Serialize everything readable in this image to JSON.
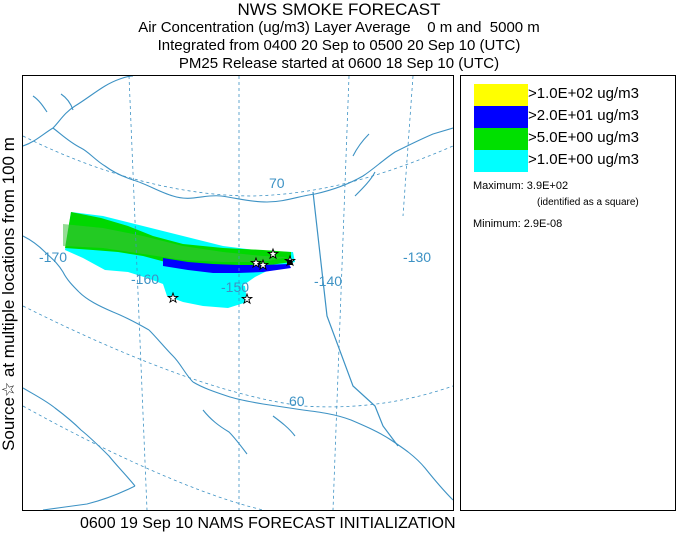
{
  "header": {
    "title": "NWS SMOKE FORECAST",
    "line2": "Air Concentration (ug/m3) Layer Average    0 m and  5000 m",
    "line3": "Integrated from 0400 20 Sep to 0500 20 Sep 10 (UTC)",
    "line4": "PM25 Release started at 0600 18 Sep 10 (UTC)"
  },
  "side_label": "Source☆  at multiple locations  from   100 m",
  "map": {
    "lat_labels": [
      "70",
      "60"
    ],
    "lon_labels": [
      "-170",
      "-160",
      "-150",
      "-140",
      "-130"
    ],
    "colors": {
      "coast": "#3d92c4",
      "grid": "#3d92c4",
      "border": "#3d92c4"
    }
  },
  "legend": {
    "entries": [
      {
        "label": ">1.0E+02 ug/m3",
        "color": "#ffff00"
      },
      {
        "label": ">2.0E+01 ug/m3",
        "color": "#0000ff"
      },
      {
        "label": ">5.0E+00 ug/m3",
        "color": "#00e000"
      },
      {
        "label": ">1.0E+00 ug/m3",
        "color": "#00ffff"
      }
    ],
    "maximum_label": "Maximum: 3.9E+02",
    "maximum_note": "(identified as a square)",
    "minimum_label": "Minimum: 2.9E-08"
  },
  "footer": "0600 19 Sep 10 NAMS FORECAST INITIALIZATION"
}
